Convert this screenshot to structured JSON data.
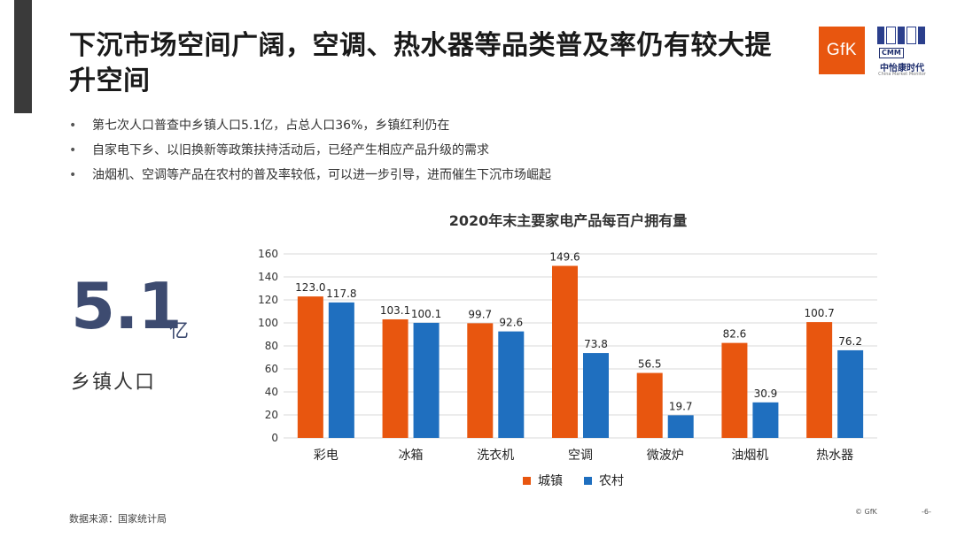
{
  "header": {
    "title": "下沉市场空间广阔，空调、热水器等品类普及率仍有较大提升空间"
  },
  "logos": {
    "gfk_text": "GfK",
    "cmm_text": "CMM",
    "cmm_cn": "中怡康时代",
    "cmm_en": "China Market Monitor"
  },
  "bullets": [
    "第七次人口普查中乡镇人口5.1亿，占总人口36%，乡镇红利仍在",
    "自家电下乡、以旧换新等政策扶持活动后，已经产生相应产品升级的需求",
    "油烟机、空调等产品在农村的普及率较低，可以进一步引导，进而催生下沉市场崛起"
  ],
  "highlight": {
    "number": "5.1",
    "unit": "亿",
    "label": "乡镇人口"
  },
  "footer": {
    "source": "数据来源：国家统计局",
    "copyright": "© GfK",
    "page": "-6-"
  },
  "colors": {
    "urban": "#e8560f",
    "rural": "#1f6fbf",
    "accent": "#3d4b70"
  },
  "chart_data": {
    "type": "bar",
    "title": "2020年末主要家电产品每百户拥有量",
    "categories": [
      "彩电",
      "冰箱",
      "洗衣机",
      "空调",
      "微波炉",
      "油烟机",
      "热水器"
    ],
    "series": [
      {
        "name": "城镇",
        "values": [
          123.0,
          103.1,
          99.7,
          149.6,
          56.5,
          82.6,
          100.7
        ],
        "labels": [
          "123.0",
          "103.1",
          "99.7",
          "149.6",
          "56.5",
          "82.6",
          "100.7"
        ]
      },
      {
        "name": "农村",
        "values": [
          117.8,
          100.1,
          92.6,
          73.8,
          19.7,
          30.9,
          76.2
        ],
        "labels": [
          "117.8",
          "100.1",
          "92.6",
          "73.8",
          "19.7",
          "30.9",
          "76.2"
        ]
      }
    ],
    "yticks": [
      "0",
      "20",
      "40",
      "60",
      "80",
      "100",
      "120",
      "140",
      "160"
    ],
    "ylim": [
      0,
      160
    ],
    "grid": true,
    "legend_position": "bottom"
  }
}
